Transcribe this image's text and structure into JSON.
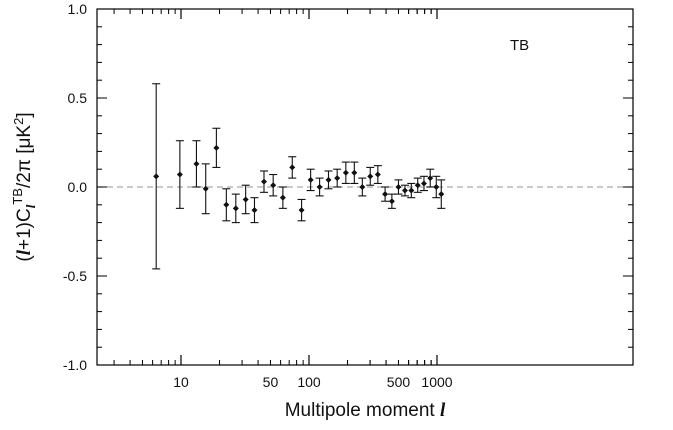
{
  "chart_data": {
    "type": "scatter",
    "annotation": "TB",
    "xlabel": {
      "text": "Multipole moment ",
      "ell": "l"
    },
    "ylabel": {
      "open": "(",
      "ell": "l",
      "plus": "+1)C",
      "sub": "l",
      "sup": "TB",
      "mid": "/2π [μK",
      "exp": "2",
      "close": "]"
    },
    "xscale": "log",
    "xlim": [
      2,
      1000
    ],
    "ylim": [
      -1.0,
      1.0
    ],
    "xticks": [
      {
        "value": 10,
        "label": "10"
      },
      {
        "value": 50,
        "label": "50"
      },
      {
        "value": 100,
        "label": "100"
      },
      {
        "value": 500,
        "label": "500"
      },
      {
        "value": 1000,
        "label": "1000"
      }
    ],
    "yticks": [
      {
        "value": 1.0,
        "label": "1.0"
      },
      {
        "value": 0.5,
        "label": "0.5"
      },
      {
        "value": 0.0,
        "label": "0.0"
      },
      {
        "value": -0.5,
        "label": "-0.5"
      },
      {
        "value": -1.0,
        "label": "-1.0"
      }
    ],
    "reference_line": {
      "y": 0,
      "style": "dashed",
      "color": "#aaaaaa"
    },
    "points": [
      {
        "x": 6.4,
        "y": 0.06,
        "err": 0.52
      },
      {
        "x": 9.8,
        "y": 0.07,
        "err": 0.19
      },
      {
        "x": 13.2,
        "y": 0.13,
        "err": 0.13
      },
      {
        "x": 15.6,
        "y": -0.01,
        "err": 0.14
      },
      {
        "x": 18.9,
        "y": 0.22,
        "err": 0.11
      },
      {
        "x": 22.6,
        "y": -0.1,
        "err": 0.09
      },
      {
        "x": 26.8,
        "y": -0.12,
        "err": 0.08
      },
      {
        "x": 32,
        "y": -0.07,
        "err": 0.08
      },
      {
        "x": 37.5,
        "y": -0.13,
        "err": 0.07
      },
      {
        "x": 44.5,
        "y": 0.03,
        "err": 0.06
      },
      {
        "x": 52.5,
        "y": 0.01,
        "err": 0.06
      },
      {
        "x": 62.5,
        "y": -0.06,
        "err": 0.06
      },
      {
        "x": 74,
        "y": 0.11,
        "err": 0.06
      },
      {
        "x": 87.5,
        "y": -0.13,
        "err": 0.06
      },
      {
        "x": 103,
        "y": 0.04,
        "err": 0.06
      },
      {
        "x": 121,
        "y": 0.0,
        "err": 0.05
      },
      {
        "x": 142,
        "y": 0.04,
        "err": 0.05
      },
      {
        "x": 166,
        "y": 0.05,
        "err": 0.05
      },
      {
        "x": 194,
        "y": 0.08,
        "err": 0.06
      },
      {
        "x": 226,
        "y": 0.08,
        "err": 0.06
      },
      {
        "x": 261,
        "y": 0.0,
        "err": 0.05
      },
      {
        "x": 301,
        "y": 0.06,
        "err": 0.05
      },
      {
        "x": 345,
        "y": 0.07,
        "err": 0.05
      },
      {
        "x": 393,
        "y": -0.04,
        "err": 0.04
      },
      {
        "x": 444,
        "y": -0.08,
        "err": 0.04
      },
      {
        "x": 500,
        "y": 0.0,
        "err": 0.04
      },
      {
        "x": 562,
        "y": -0.02,
        "err": 0.03
      },
      {
        "x": 630,
        "y": -0.02,
        "err": 0.04
      },
      {
        "x": 707,
        "y": 0.01,
        "err": 0.04
      },
      {
        "x": 791,
        "y": 0.02,
        "err": 0.04
      },
      {
        "x": 885,
        "y": 0.05,
        "err": 0.05
      },
      {
        "x": 987,
        "y": 0.0,
        "err": 0.06
      },
      {
        "x": 1080,
        "y": -0.04,
        "err": 0.08
      }
    ],
    "colors": {
      "markers": "#111111",
      "axes": "#000000",
      "zero_line": "#aaaaaa"
    }
  }
}
